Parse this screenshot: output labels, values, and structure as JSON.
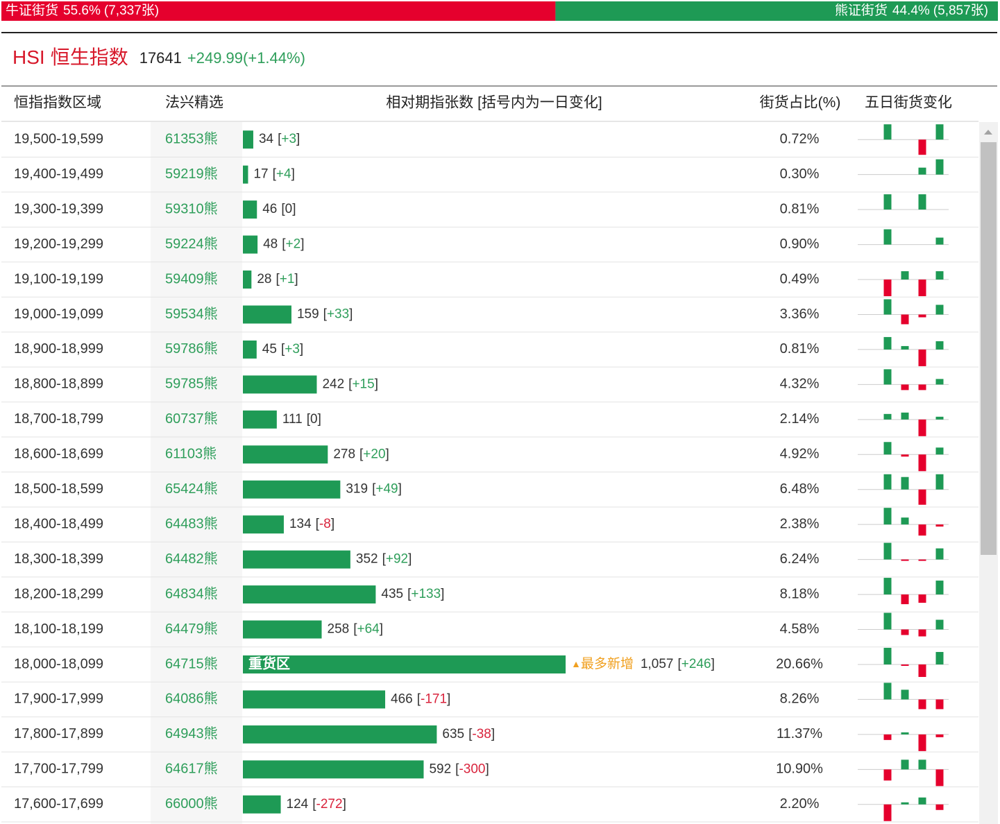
{
  "top_bar": {
    "bull": {
      "label": "牛证街货",
      "pct": {
        "value": 55.6,
        "label": "55.6%"
      },
      "count": "(7,337张)"
    },
    "bear": {
      "label": "熊证街货",
      "pct": {
        "value": 44.4,
        "label": "44.4%"
      },
      "count": "(5,857张)"
    }
  },
  "index": {
    "code": "HSI",
    "name": "恒生指数",
    "price": "17641",
    "change": "+249.99(+1.44%)"
  },
  "table": {
    "columns": [
      "恒指指数区域",
      "法兴精选",
      "相对期指张数 [括号内为一日变化]",
      "街货占比(%)",
      "五日街货变化"
    ],
    "rows": [
      {
        "range": "19,500-19,599",
        "product": "61353熊",
        "count": 34,
        "change": "+3",
        "share": "0.72%",
        "five_day": [
          22,
          0,
          -22,
          22
        ]
      },
      {
        "range": "19,400-19,499",
        "product": "59219熊",
        "count": 17,
        "change": "+4",
        "share": "0.30%",
        "five_day": [
          0,
          0,
          10,
          22
        ]
      },
      {
        "range": "19,300-19,399",
        "product": "59310熊",
        "count": 46,
        "change": "0",
        "share": "0.81%",
        "five_day": [
          22,
          0,
          22,
          0
        ]
      },
      {
        "range": "19,200-19,299",
        "product": "59224熊",
        "count": 48,
        "change": "+2",
        "share": "0.90%",
        "five_day": [
          22,
          0,
          0,
          10
        ]
      },
      {
        "range": "19,100-19,199",
        "product": "59409熊",
        "count": 28,
        "change": "+1",
        "share": "0.49%",
        "five_day": [
          -24,
          12,
          -24,
          12
        ]
      },
      {
        "range": "19,000-19,099",
        "product": "59534熊",
        "count": 159,
        "change": "+33",
        "share": "3.36%",
        "five_day": [
          22,
          -14,
          -4,
          14
        ]
      },
      {
        "range": "18,900-18,999",
        "product": "59786熊",
        "count": 45,
        "change": "+3",
        "share": "0.81%",
        "five_day": [
          18,
          5,
          -24,
          12
        ]
      },
      {
        "range": "18,800-18,899",
        "product": "59785熊",
        "count": 242,
        "change": "+15",
        "share": "4.32%",
        "five_day": [
          22,
          -8,
          -8,
          8
        ]
      },
      {
        "range": "18,700-18,799",
        "product": "60737熊",
        "count": 111,
        "change": "0",
        "share": "2.14%",
        "five_day": [
          8,
          10,
          -24,
          4
        ]
      },
      {
        "range": "18,600-18,699",
        "product": "61103熊",
        "count": 278,
        "change": "+20",
        "share": "4.92%",
        "five_day": [
          18,
          -3,
          -24,
          10
        ]
      },
      {
        "range": "18,500-18,599",
        "product": "65424熊",
        "count": 319,
        "change": "+49",
        "share": "6.48%",
        "five_day": [
          22,
          18,
          -22,
          22
        ]
      },
      {
        "range": "18,400-18,499",
        "product": "64483熊",
        "count": 134,
        "change": "-8",
        "share": "2.38%",
        "five_day": [
          24,
          10,
          -16,
          -3
        ]
      },
      {
        "range": "18,300-18,399",
        "product": "64482熊",
        "count": 352,
        "change": "+92",
        "share": "6.24%",
        "five_day": [
          24,
          -2,
          -2,
          16
        ]
      },
      {
        "range": "18,200-18,299",
        "product": "64834熊",
        "count": 435,
        "change": "+133",
        "share": "8.18%",
        "five_day": [
          24,
          -14,
          -12,
          20
        ]
      },
      {
        "range": "18,100-18,199",
        "product": "64479熊",
        "count": 258,
        "change": "+64",
        "share": "4.58%",
        "five_day": [
          24,
          -8,
          -10,
          14
        ]
      },
      {
        "range": "18,000-18,099",
        "product": "64715熊",
        "count": {
          "value": 1057,
          "label": "1,057"
        },
        "change": "+246",
        "share": "20.66%",
        "five_day": [
          24,
          -2,
          -18,
          18
        ],
        "tag": "重货区",
        "note": "最多新增"
      },
      {
        "range": "17,900-17,999",
        "product": "64086熊",
        "count": 466,
        "change": "-171",
        "share": "8.26%",
        "five_day": [
          24,
          14,
          -14,
          -14
        ]
      },
      {
        "range": "17,800-17,899",
        "product": "64943熊",
        "count": 635,
        "change": "-38",
        "share": "11.37%",
        "five_day": [
          -8,
          3,
          -24,
          -4
        ]
      },
      {
        "range": "17,700-17,799",
        "product": "64617熊",
        "count": 592,
        "change": "-300",
        "share": "10.90%",
        "five_day": [
          -16,
          14,
          14,
          -24
        ]
      },
      {
        "range": "17,600-17,699",
        "product": "66000熊",
        "count": 124,
        "change": "-272",
        "share": "2.20%",
        "five_day": [
          -24,
          3,
          10,
          -8
        ]
      }
    ]
  }
}
